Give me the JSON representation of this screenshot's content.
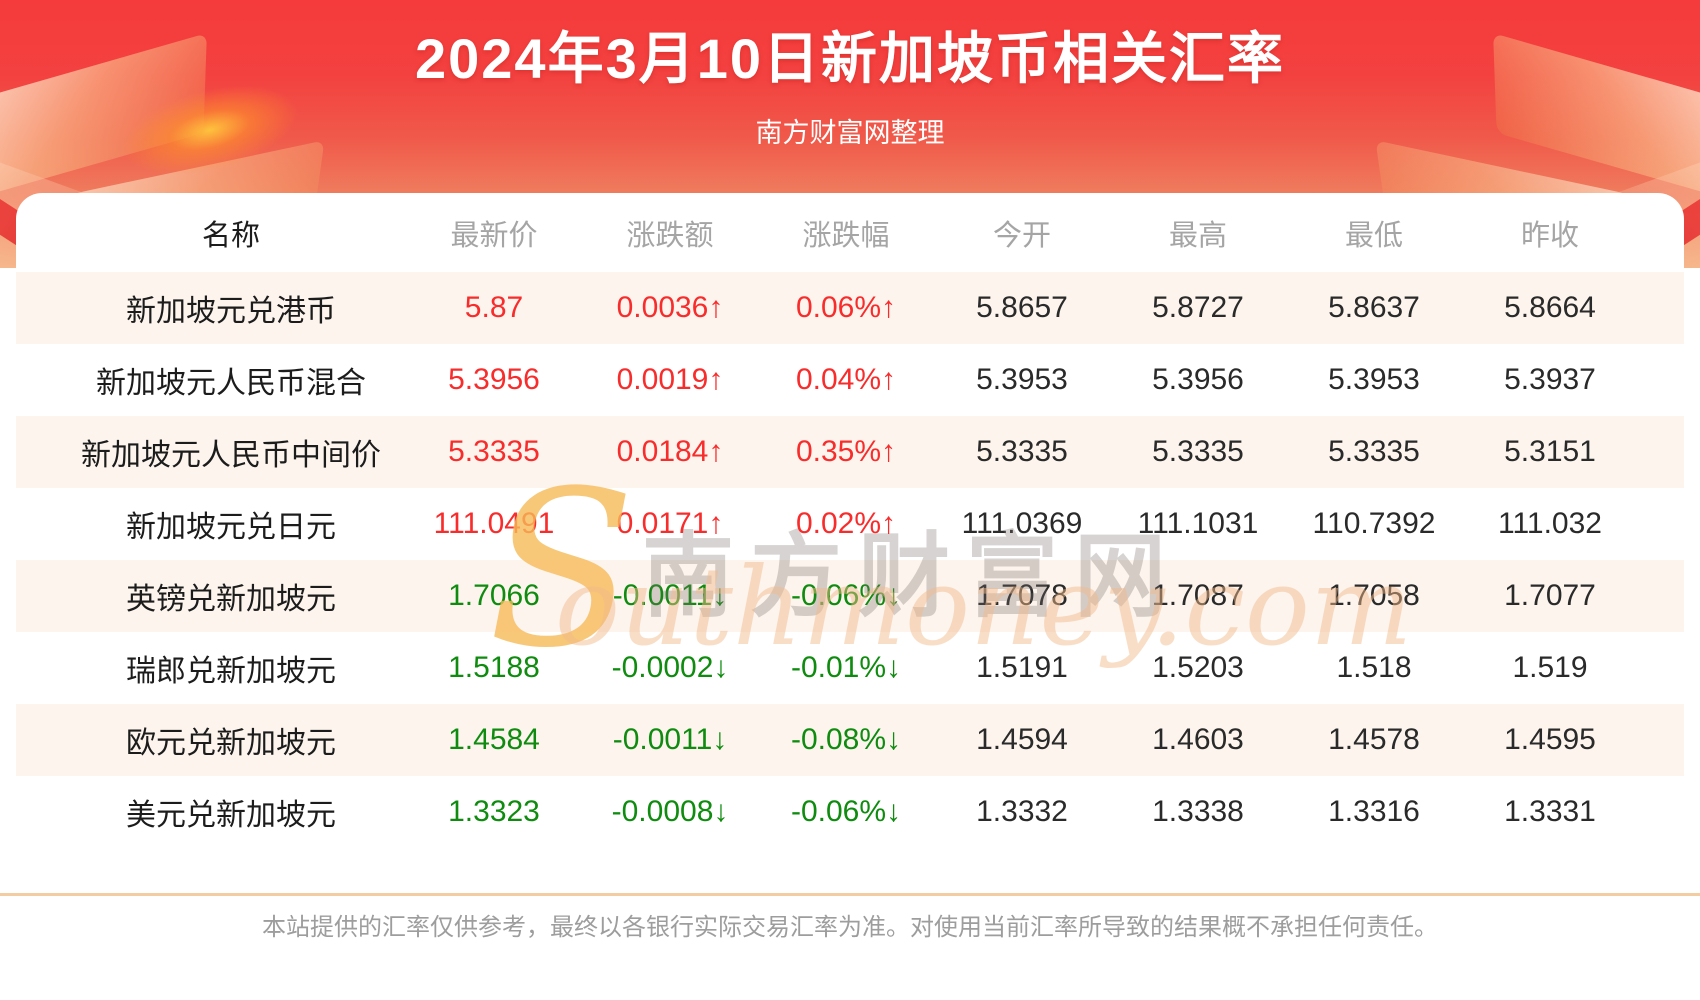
{
  "page": {
    "title": "2024年3月10日新加坡币相关汇率",
    "subtitle": "南方财富网整理",
    "disclaimer": "本站提供的汇率仅供参考，最终以各银行实际交易汇率为准。对使用当前汇率所导致的结果概不承担任何责任。"
  },
  "watermark": {
    "initial": "S",
    "cjk": "南方财富网",
    "latin": "outhmoney.com"
  },
  "colors": {
    "up": "#f92c2c",
    "down": "#0f8c0f",
    "header_red": "#f53b3b",
    "stripe": "#fcf4ed",
    "divider": "#f3cda1"
  },
  "chart_data": {
    "type": "table",
    "title": "2024年3月10日新加坡币相关汇率",
    "columns": [
      "名称",
      "最新价",
      "涨跌额",
      "涨跌幅",
      "今开",
      "最高",
      "最低",
      "昨收"
    ],
    "arrow_up": "↑",
    "arrow_down": "↓",
    "rows": [
      {
        "name": "新加坡元兑港币",
        "last": "5.87",
        "change": "0.0036",
        "pct": "0.06%",
        "direction": "up",
        "open": "5.8657",
        "high": "5.8727",
        "low": "5.8637",
        "prev_close": "5.8664"
      },
      {
        "name": "新加坡元人民币混合",
        "last": "5.3956",
        "change": "0.0019",
        "pct": "0.04%",
        "direction": "up",
        "open": "5.3953",
        "high": "5.3956",
        "low": "5.3953",
        "prev_close": "5.3937"
      },
      {
        "name": "新加坡元人民币中间价",
        "last": "5.3335",
        "change": "0.0184",
        "pct": "0.35%",
        "direction": "up",
        "open": "5.3335",
        "high": "5.3335",
        "low": "5.3335",
        "prev_close": "5.3151"
      },
      {
        "name": "新加坡元兑日元",
        "last": "111.0491",
        "change": "0.0171",
        "pct": "0.02%",
        "direction": "up",
        "open": "111.0369",
        "high": "111.1031",
        "low": "110.7392",
        "prev_close": "111.032"
      },
      {
        "name": "英镑兑新加坡元",
        "last": "1.7066",
        "change": "-0.0011",
        "pct": "-0.06%",
        "direction": "down",
        "open": "1.7078",
        "high": "1.7087",
        "low": "1.7058",
        "prev_close": "1.7077"
      },
      {
        "name": "瑞郎兑新加坡元",
        "last": "1.5188",
        "change": "-0.0002",
        "pct": "-0.01%",
        "direction": "down",
        "open": "1.5191",
        "high": "1.5203",
        "low": "1.518",
        "prev_close": "1.519"
      },
      {
        "name": "欧元兑新加坡元",
        "last": "1.4584",
        "change": "-0.0011",
        "pct": "-0.08%",
        "direction": "down",
        "open": "1.4594",
        "high": "1.4603",
        "low": "1.4578",
        "prev_close": "1.4595"
      },
      {
        "name": "美元兑新加坡元",
        "last": "1.3323",
        "change": "-0.0008",
        "pct": "-0.06%",
        "direction": "down",
        "open": "1.3332",
        "high": "1.3338",
        "low": "1.3316",
        "prev_close": "1.3331"
      }
    ]
  }
}
